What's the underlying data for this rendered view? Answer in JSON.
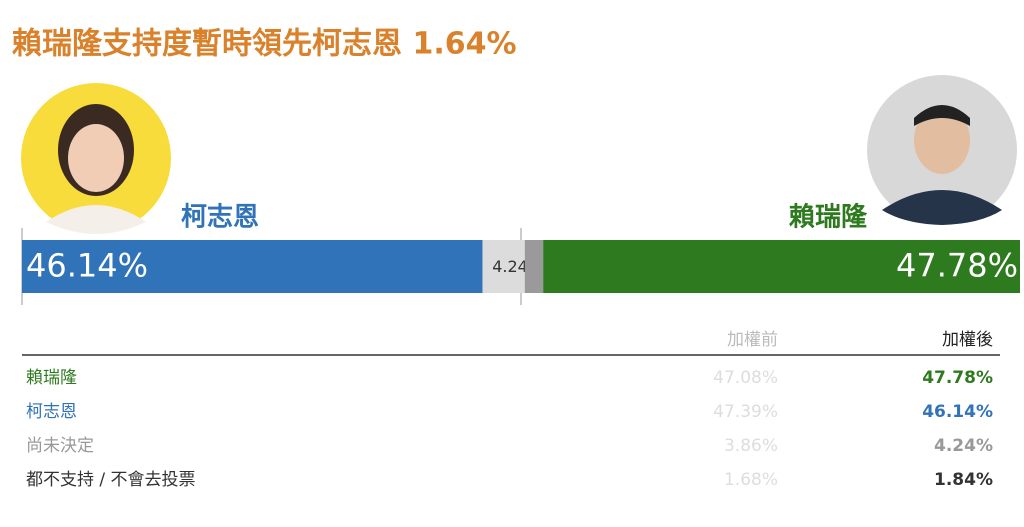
{
  "chart_data": {
    "type": "stacked-bar",
    "title": "賴瑞隆支持度暫時領先柯志恩 1.64%",
    "xlim": [
      0,
      100
    ],
    "series": [
      {
        "name": "柯志恩",
        "color": "#3173b8",
        "values": [
          46.14
        ],
        "value_labels": [
          "46.14%"
        ]
      },
      {
        "color": "#dcdcdc",
        "values": [
          4.24
        ],
        "value_labels": [
          "4.24%"
        ]
      },
      {
        "color": "#9a9a9a",
        "values": [
          1.84
        ]
      },
      {
        "name": "賴瑞隆",
        "color": "#2e7a1f",
        "values": [
          47.78
        ],
        "value_labels": [
          "47.78%"
        ]
      }
    ]
  },
  "table": {
    "headers": [
      "加權前",
      "加權後"
    ],
    "rows": [
      [
        "賴瑞隆",
        "47.08%",
        "47.78%"
      ],
      [
        "柯志恩",
        "47.39%",
        "46.14%"
      ],
      [
        "尚未決定",
        "3.86%",
        "4.24%"
      ],
      [
        "都不支持 / 不會去投票",
        "1.68%",
        "1.84%"
      ]
    ]
  }
}
